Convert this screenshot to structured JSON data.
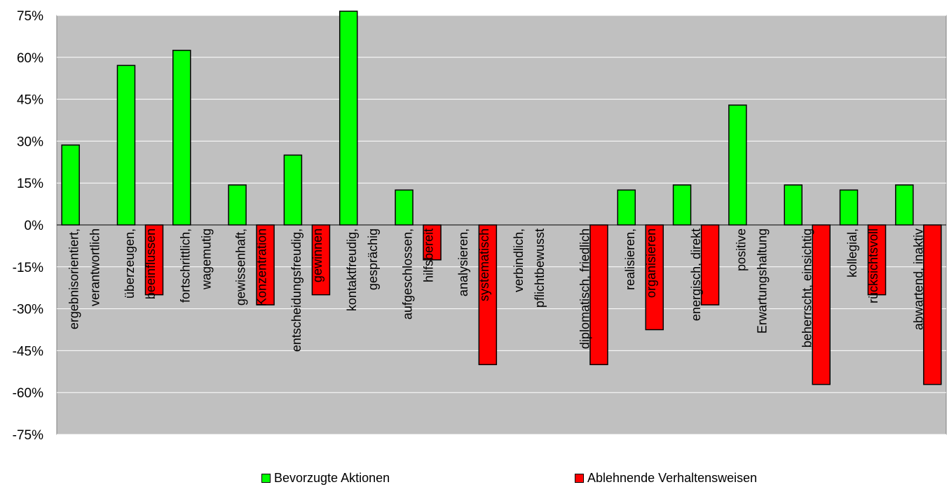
{
  "chart_data": {
    "type": "bar",
    "categories": [
      [
        "ergebnisorientiert,",
        "verantwortlich"
      ],
      [
        "überzeugen,",
        "beeinflussen"
      ],
      [
        "fortschrittlich,",
        "wagemutig"
      ],
      [
        "gewissenhaft,",
        "Konzentration"
      ],
      [
        "entscheidungsfreudig,",
        "gewinnen"
      ],
      [
        "kontaktfreudig,",
        "gesprächig"
      ],
      [
        "aufgeschlossen,",
        "hilfsbereit"
      ],
      [
        "analysieren,",
        "systematisch"
      ],
      [
        "verbindlich,",
        "pflichtbewusst"
      ],
      [
        "diplomatisch, friedlich"
      ],
      [
        "realisieren,",
        "organisieren"
      ],
      [
        "energisch, direkt"
      ],
      [
        "positive",
        "Erwartungshaltung"
      ],
      [
        "beherrscht, einsichtig"
      ],
      [
        "kollegial,",
        "rücksichtsvoll"
      ],
      [
        "abwartend, inaktiv"
      ]
    ],
    "series": [
      {
        "name": "Bevorzugte Aktionen",
        "color": "#00ff00",
        "values": [
          28.6,
          57.1,
          62.5,
          14.3,
          25,
          76.5,
          12.5,
          0,
          0,
          0,
          12.5,
          14.3,
          42.9,
          14.3,
          12.5,
          14.3
        ]
      },
      {
        "name": "Ablehnende Verhaltensweisen",
        "color": "#ff0000",
        "values": [
          0,
          -25,
          0,
          -28.6,
          -25,
          0,
          -12.5,
          -50,
          0,
          -50,
          -37.5,
          -28.6,
          0,
          -57.1,
          -25,
          -57.1
        ]
      }
    ],
    "ylim": [
      -75,
      75
    ],
    "yticks": [
      "75%",
      "60%",
      "45%",
      "30%",
      "15%",
      "0%",
      "-15%",
      "-30%",
      "-45%",
      "-60%",
      "-75%"
    ],
    "ytick_values": [
      75,
      60,
      45,
      30,
      15,
      0,
      -15,
      -30,
      -45,
      -60,
      -75
    ],
    "plot_background": "#c0c0c0",
    "grid": true,
    "legend_position": "bottom"
  }
}
